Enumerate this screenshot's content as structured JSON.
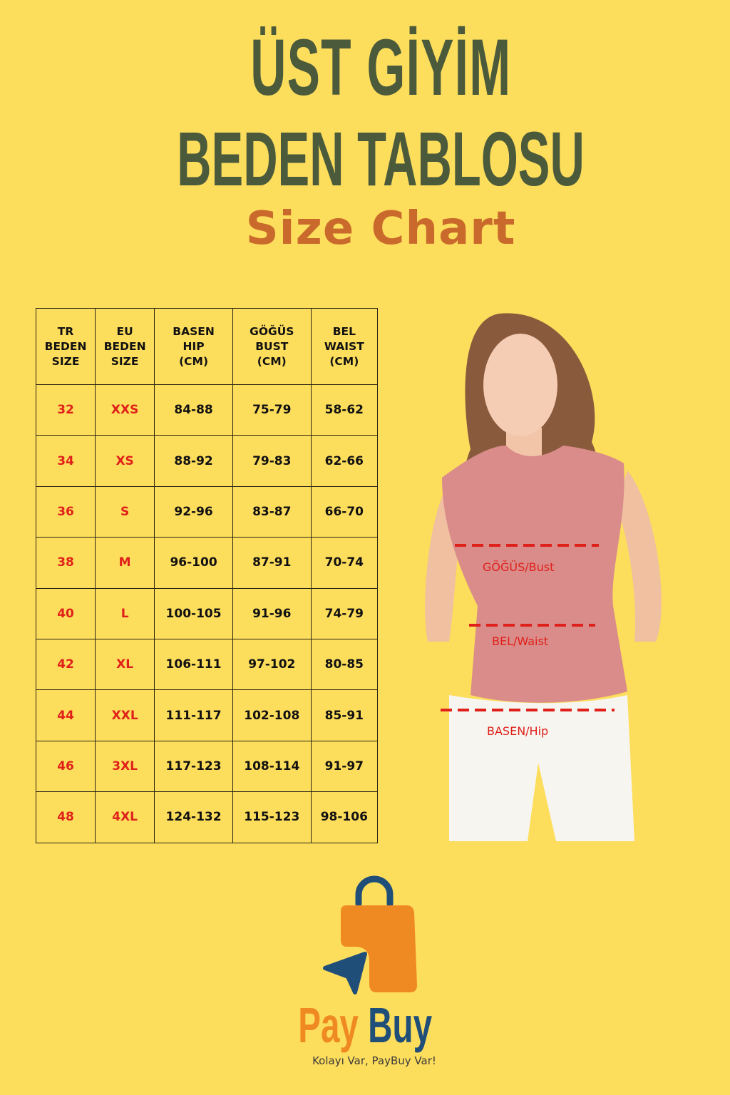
{
  "title": {
    "line1": "ÜST GİYİM",
    "line2": "BEDEN TABLOSU",
    "subtitle": "Size Chart"
  },
  "table": {
    "headers": [
      "TR\nBEDEN\nSIZE",
      "EU\nBEDEN\nSIZE",
      "BASEN\nHIP\n(CM)",
      "GÖĞÜS\nBUST\n(CM)",
      "BEL\nWAIST\n(CM)"
    ],
    "rows": [
      [
        "32",
        "XXS",
        "84-88",
        "75-79",
        "58-62"
      ],
      [
        "34",
        "XS",
        "88-92",
        "79-83",
        "62-66"
      ],
      [
        "36",
        "S",
        "92-96",
        "83-87",
        "66-70"
      ],
      [
        "38",
        "M",
        "96-100",
        "87-91",
        "70-74"
      ],
      [
        "40",
        "L",
        "100-105",
        "91-96",
        "74-79"
      ],
      [
        "42",
        "XL",
        "106-111",
        "97-102",
        "80-85"
      ],
      [
        "44",
        "XXL",
        "111-117",
        "102-108",
        "85-91"
      ],
      [
        "46",
        "3XL",
        "117-123",
        "108-114",
        "91-97"
      ],
      [
        "48",
        "4XL",
        "124-132",
        "115-123",
        "98-106"
      ]
    ]
  },
  "measurements": {
    "bust": "GÖĞÜS/Bust",
    "waist": "BEL/Waist",
    "hip": "BASEN/Hip"
  },
  "brand": {
    "name_part1": "Pay",
    "name_part2": "Buy",
    "tagline": "Kolayı Var, PayBuy Var!",
    "icon": "shopping-bag-cursor-icon"
  },
  "colors": {
    "background": "#fddd5c",
    "title": "#4a5a3b",
    "subtitle": "#c96a2c",
    "size_text": "#e0201a",
    "brand_orange": "#ef8a22",
    "brand_blue": "#1f4e79"
  }
}
